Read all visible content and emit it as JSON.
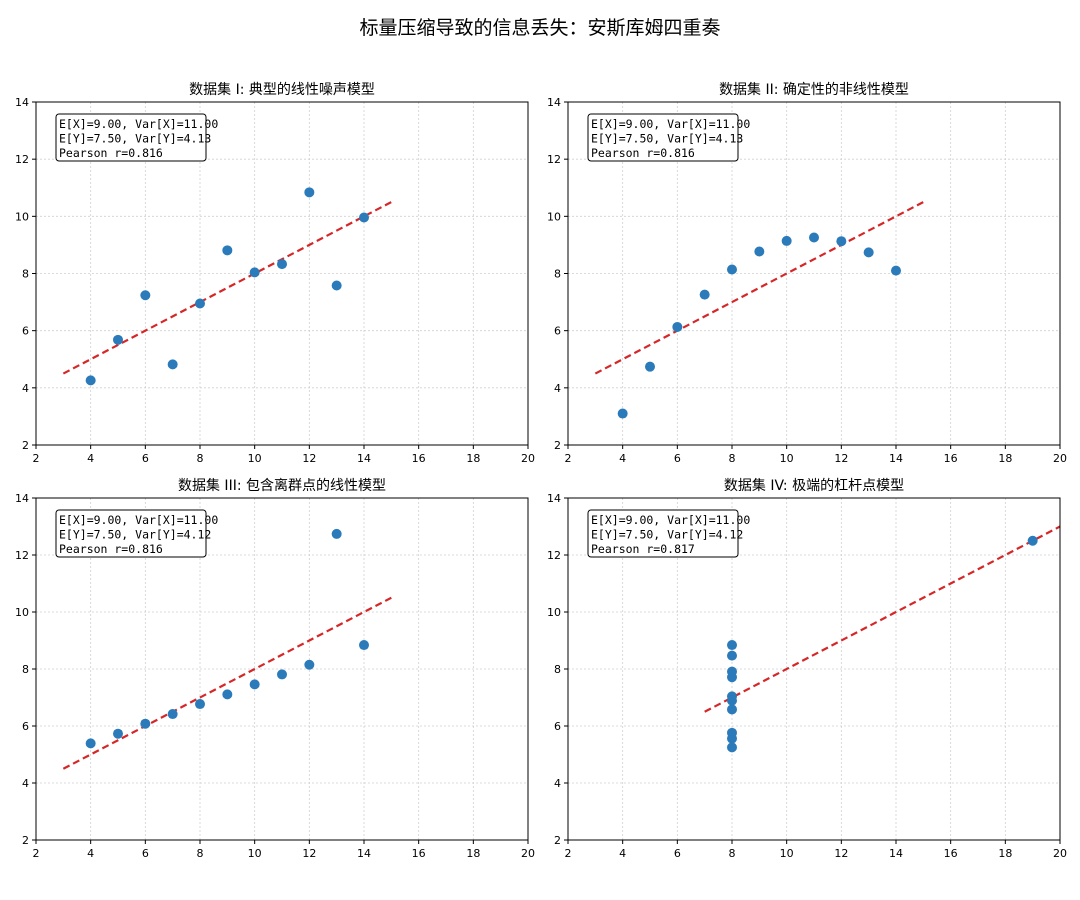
{
  "figure": {
    "title": "标量压缩导致的信息丢失：安斯库姆四重奏"
  },
  "chart_data": [
    {
      "type": "scatter",
      "title": "数据集 I: 典型的线性噪声模型",
      "xlabel": "",
      "ylabel": "",
      "xlim": [
        2,
        20
      ],
      "ylim": [
        2,
        14
      ],
      "xticks": [
        2,
        4,
        6,
        8,
        10,
        12,
        14,
        16,
        18,
        20
      ],
      "yticks": [
        2,
        4,
        6,
        8,
        10,
        12,
        14
      ],
      "grid": true,
      "x": [
        10,
        8,
        13,
        9,
        11,
        14,
        6,
        4,
        12,
        7,
        5
      ],
      "y": [
        8.04,
        6.95,
        7.58,
        8.81,
        8.33,
        9.96,
        7.24,
        4.26,
        10.84,
        4.82,
        5.68
      ],
      "fit_line": {
        "x": [
          3,
          15
        ],
        "y": [
          4.5,
          10.5
        ]
      },
      "stats": [
        "E[X]=9.00, Var[X]=11.00",
        "E[Y]=7.50, Var[Y]=4.13",
        "Pearson r=0.816"
      ],
      "point_color": "#2b7bba",
      "line_color": "#d62728"
    },
    {
      "type": "scatter",
      "title": "数据集 II: 确定性的非线性模型",
      "xlabel": "",
      "ylabel": "",
      "xlim": [
        2,
        20
      ],
      "ylim": [
        2,
        14
      ],
      "xticks": [
        2,
        4,
        6,
        8,
        10,
        12,
        14,
        16,
        18,
        20
      ],
      "yticks": [
        2,
        4,
        6,
        8,
        10,
        12,
        14
      ],
      "grid": true,
      "x": [
        10,
        8,
        13,
        9,
        11,
        14,
        6,
        4,
        12,
        7,
        5
      ],
      "y": [
        9.14,
        8.14,
        8.74,
        8.77,
        9.26,
        8.1,
        6.13,
        3.1,
        9.13,
        7.26,
        4.74
      ],
      "fit_line": {
        "x": [
          3,
          15
        ],
        "y": [
          4.5,
          10.5
        ]
      },
      "stats": [
        "E[X]=9.00, Var[X]=11.00",
        "E[Y]=7.50, Var[Y]=4.13",
        "Pearson r=0.816"
      ],
      "point_color": "#2b7bba",
      "line_color": "#d62728"
    },
    {
      "type": "scatter",
      "title": "数据集 III: 包含离群点的线性模型",
      "xlabel": "",
      "ylabel": "",
      "xlim": [
        2,
        20
      ],
      "ylim": [
        2,
        14
      ],
      "xticks": [
        2,
        4,
        6,
        8,
        10,
        12,
        14,
        16,
        18,
        20
      ],
      "yticks": [
        2,
        4,
        6,
        8,
        10,
        12,
        14
      ],
      "grid": true,
      "x": [
        10,
        8,
        13,
        9,
        11,
        14,
        6,
        4,
        12,
        7,
        5
      ],
      "y": [
        7.46,
        6.77,
        12.74,
        7.11,
        7.81,
        8.84,
        6.08,
        5.39,
        8.15,
        6.42,
        5.73
      ],
      "fit_line": {
        "x": [
          3,
          15
        ],
        "y": [
          4.5,
          10.5
        ]
      },
      "stats": [
        "E[X]=9.00, Var[X]=11.00",
        "E[Y]=7.50, Var[Y]=4.12",
        "Pearson r=0.816"
      ],
      "point_color": "#2b7bba",
      "line_color": "#d62728"
    },
    {
      "type": "scatter",
      "title": "数据集 IV: 极端的杠杆点模型",
      "xlabel": "",
      "ylabel": "",
      "xlim": [
        2,
        20
      ],
      "ylim": [
        2,
        14
      ],
      "xticks": [
        2,
        4,
        6,
        8,
        10,
        12,
        14,
        16,
        18,
        20
      ],
      "yticks": [
        2,
        4,
        6,
        8,
        10,
        12,
        14
      ],
      "grid": true,
      "x": [
        8,
        8,
        8,
        8,
        8,
        8,
        8,
        19,
        8,
        8,
        8
      ],
      "y": [
        6.58,
        5.76,
        7.71,
        8.84,
        8.47,
        7.04,
        5.25,
        12.5,
        5.56,
        7.91,
        6.89
      ],
      "fit_line": {
        "x": [
          7,
          20
        ],
        "y": [
          6.5,
          13.0
        ]
      },
      "stats": [
        "E[X]=9.00, Var[X]=11.00",
        "E[Y]=7.50, Var[Y]=4.12",
        "Pearson r=0.817"
      ],
      "point_color": "#2b7bba",
      "line_color": "#d62728"
    }
  ]
}
